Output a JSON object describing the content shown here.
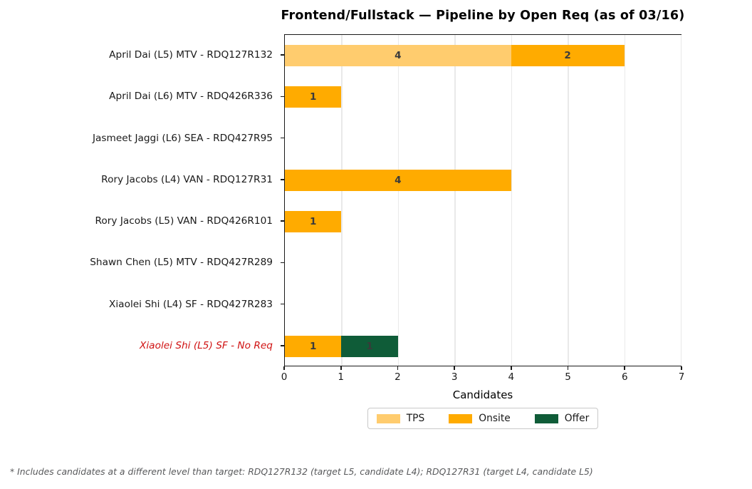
{
  "title": "Frontend/Fullstack — Pipeline by Open Req (as of 03/16)",
  "footnote": "* Includes candidates at a different level than target: RDQ127R132 (target L5, candidate L4); RDQ127R31 (target L4, candidate L5)",
  "chart_data": {
    "type": "bar",
    "orientation": "horizontal",
    "stacked": true,
    "title": "Frontend/Fullstack — Pipeline by Open Req (as of 03/16)",
    "xlabel": "Candidates",
    "xlim": [
      0,
      7
    ],
    "xticks": [
      0,
      1,
      2,
      3,
      4,
      5,
      6,
      7
    ],
    "grid": true,
    "legend_position": "bottom-center",
    "categories": [
      "April Dai (L5) MTV - RDQ127R132",
      "April Dai (L6) MTV - RDQ426R336",
      "Jasmeet Jaggi (L6) SEA - RDQ427R95",
      "Rory Jacobs (L4) VAN - RDQ127R31",
      "Rory Jacobs (L5) VAN - RDQ426R101",
      "Shawn Chen (L5) MTV - RDQ427R289",
      "Xiaolei Shi (L4) SF - RDQ427R283",
      "Xiaolei Shi (L5) SF - No Req"
    ],
    "series": [
      {
        "name": "TPS",
        "color": "#FFCC6E",
        "values": [
          4,
          0,
          0,
          0,
          0,
          0,
          0,
          0
        ]
      },
      {
        "name": "Onsite",
        "color": "#FFAB00",
        "values": [
          2,
          1,
          0,
          4,
          1,
          0,
          0,
          1
        ]
      },
      {
        "name": "Offer",
        "color": "#0F5C38",
        "values": [
          0,
          0,
          0,
          0,
          0,
          0,
          0,
          1
        ]
      }
    ],
    "bar_label_color": "#3A3A3A",
    "highlight_category": {
      "index": 7,
      "color": "#D01212",
      "italic": true
    }
  },
  "colors": {
    "axis": "#1a1a1a",
    "gridline": "#e9e9e9",
    "footnote_text": "#58595b",
    "highlight_red": "#D01212"
  }
}
